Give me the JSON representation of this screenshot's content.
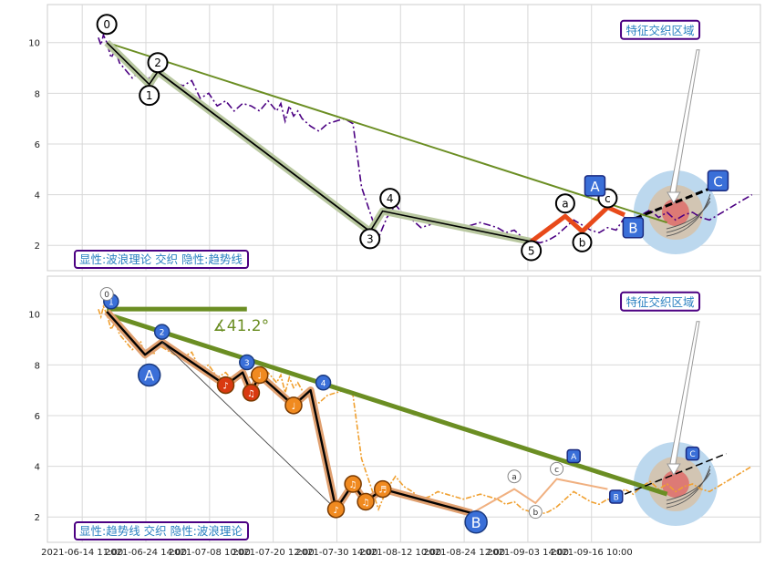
{
  "colors": {
    "price_top": "#4b0082",
    "price_bottom": "#f0a030",
    "wave": "#000000",
    "wave_halo_top": "#b9c8a0",
    "wave_halo_bottom": "#e0a070",
    "trend": "#6b8e23",
    "abc_red": "#e84a1a",
    "label_box_border": "#4b0082",
    "label_box_text": "#2a80c0",
    "badge_blue": "#3a6fd8",
    "badge_orange": "#f08a20",
    "badge_red": "#d93a10"
  },
  "chart_data": [
    {
      "type": "line",
      "panel": "top",
      "ylim": [
        1.0,
        11.5
      ],
      "yticks": [
        2,
        4,
        6,
        8,
        10
      ],
      "grid": true,
      "price_series": {
        "x": [
          0,
          0.3,
          0.6,
          1,
          1.5,
          2,
          2.5,
          3,
          4,
          5,
          5.5,
          6,
          6.5,
          7,
          8,
          9,
          10,
          11,
          12,
          13,
          14,
          15,
          16,
          17,
          18,
          19,
          20,
          21,
          21.5,
          22,
          22.5,
          23,
          23.5,
          24,
          25,
          26,
          27,
          28,
          29,
          30,
          31,
          32,
          33,
          34,
          35,
          36,
          37,
          38,
          39,
          40,
          41,
          42,
          43,
          44,
          45,
          46,
          47,
          48,
          49,
          50,
          51,
          52,
          53,
          54,
          55,
          56,
          57,
          58,
          59,
          60,
          61,
          62,
          63,
          64,
          65,
          66,
          67,
          68,
          69,
          70,
          71,
          72,
          73,
          74,
          75,
          76,
          77
        ],
        "y": [
          10.2,
          9.9,
          10.3,
          10.0,
          9.4,
          9.7,
          9.2,
          9.0,
          8.6,
          8.9,
          8.3,
          8.6,
          8.4,
          8.8,
          8.6,
          8.4,
          8.3,
          8.5,
          7.8,
          8.0,
          7.5,
          7.7,
          7.3,
          7.6,
          7.5,
          7.3,
          7.7,
          7.3,
          7.6,
          6.9,
          7.5,
          7.1,
          7.3,
          7.0,
          6.7,
          6.5,
          6.8,
          6.9,
          7.0,
          6.8,
          4.3,
          3.3,
          2.3,
          3.1,
          3.6,
          3.2,
          3.0,
          2.7,
          2.8,
          3.0,
          2.9,
          2.8,
          2.7,
          2.8,
          2.9,
          2.8,
          2.7,
          2.5,
          2.6,
          2.3,
          2.2,
          2.1,
          2.2,
          2.4,
          2.7,
          3.0,
          2.8,
          2.6,
          2.5,
          2.7,
          2.6,
          3.1,
          2.9,
          3.2,
          3.4,
          3.1,
          3.3,
          3.0,
          3.2,
          3.3,
          3.1,
          3.0,
          3.2,
          3.4,
          3.6,
          3.8,
          4.0
        ]
      },
      "wave_points": [
        {
          "label": "0",
          "x": 1,
          "y": 10.0
        },
        {
          "label": "1",
          "x": 6,
          "y": 8.35
        },
        {
          "label": "2",
          "x": 7,
          "y": 8.85
        },
        {
          "label": "3",
          "x": 32,
          "y": 2.55
        },
        {
          "label": "4",
          "x": 33.5,
          "y": 3.35
        },
        {
          "label": "5",
          "x": 51,
          "y": 2.15
        }
      ],
      "abc_points": [
        {
          "label": "a",
          "x": 55,
          "y": 3.15
        },
        {
          "label": "b",
          "x": 57,
          "y": 2.55
        },
        {
          "label": "c",
          "x": 60,
          "y": 3.5
        }
      ],
      "trend_line": {
        "x": [
          1,
          67
        ],
        "y": [
          10.0,
          2.9
        ]
      },
      "projection": {
        "x": [
          62,
          74
        ],
        "y": [
          2.9,
          4.5
        ]
      },
      "badges": [
        {
          "label": "A",
          "x": 58.5,
          "y": 4.35
        },
        {
          "label": "B",
          "x": 63,
          "y": 2.7
        },
        {
          "label": "C",
          "x": 73,
          "y": 4.55
        }
      ],
      "target_zone": {
        "x": 68,
        "y": 3.3,
        "label": "特征交织区域",
        "label_at": {
          "x": 62,
          "y": 10.5
        }
      },
      "caption": "显性:波浪理论 交织 隐性:趋势线"
    },
    {
      "type": "line",
      "panel": "bottom",
      "ylim": [
        1.0,
        11.5
      ],
      "yticks": [
        2,
        4,
        6,
        8,
        10
      ],
      "grid": true,
      "price_series": {
        "x": [
          0,
          0.3,
          0.6,
          1,
          1.5,
          2,
          2.5,
          3,
          4,
          5,
          5.5,
          6,
          6.5,
          7,
          8,
          9,
          10,
          11,
          12,
          13,
          14,
          15,
          16,
          17,
          18,
          19,
          20,
          21,
          21.5,
          22,
          22.5,
          23,
          23.5,
          24,
          25,
          26,
          27,
          28,
          29,
          30,
          31,
          32,
          33,
          34,
          35,
          36,
          37,
          38,
          39,
          40,
          41,
          42,
          43,
          44,
          45,
          46,
          47,
          48,
          49,
          50,
          51,
          52,
          53,
          54,
          55,
          56,
          57,
          58,
          59,
          60,
          61,
          62,
          63,
          64,
          65,
          66,
          67,
          68,
          69,
          70,
          71,
          72,
          73,
          74,
          75,
          76,
          77
        ],
        "y": [
          10.2,
          9.9,
          10.3,
          10.0,
          9.4,
          9.7,
          9.2,
          9.0,
          8.6,
          8.9,
          8.3,
          8.6,
          8.4,
          8.8,
          8.6,
          8.4,
          8.3,
          8.5,
          7.8,
          8.0,
          7.5,
          7.7,
          7.3,
          7.6,
          7.5,
          7.3,
          7.7,
          7.3,
          7.6,
          6.9,
          7.5,
          7.1,
          7.3,
          7.0,
          6.7,
          6.5,
          6.8,
          6.9,
          7.0,
          6.8,
          4.3,
          3.3,
          2.3,
          3.1,
          3.6,
          3.2,
          3.0,
          2.7,
          2.8,
          3.0,
          2.9,
          2.8,
          2.7,
          2.8,
          2.9,
          2.8,
          2.7,
          2.5,
          2.6,
          2.3,
          2.2,
          2.1,
          2.2,
          2.4,
          2.7,
          3.0,
          2.8,
          2.6,
          2.5,
          2.7,
          2.6,
          3.1,
          2.9,
          3.2,
          3.4,
          3.1,
          3.3,
          3.0,
          3.2,
          3.3,
          3.1,
          3.0,
          3.2,
          3.4,
          3.6,
          3.8,
          4.0
        ]
      },
      "wave_points": [
        {
          "label": "0",
          "x": 1,
          "y": 10.1
        },
        {
          "label": "A",
          "x": 5.5,
          "y": 8.4
        },
        {
          "label": "2",
          "x": 7.5,
          "y": 8.9
        },
        {
          "label": "♪",
          "x": 15,
          "y": 7.2
        },
        {
          "label": "3",
          "x": 17,
          "y": 7.7
        },
        {
          "label": "♫",
          "x": 18,
          "y": 6.9
        },
        {
          "label": "♩",
          "x": 19,
          "y": 7.6
        },
        {
          "label": "♩",
          "x": 23,
          "y": 6.4
        },
        {
          "label": "4",
          "x": 25,
          "y": 7.0
        },
        {
          "label": "♪",
          "x": 28,
          "y": 2.3
        },
        {
          "label": "♫",
          "x": 30,
          "y": 3.3
        },
        {
          "label": "♫",
          "x": 31.5,
          "y": 2.6
        },
        {
          "label": "♬",
          "x": 33.5,
          "y": 3.1
        },
        {
          "label": "B",
          "x": 44,
          "y": 2.15
        }
      ],
      "badges_blue": [
        {
          "label": "1",
          "x": 1.5,
          "y": 10.5
        },
        {
          "label": "2",
          "x": 7.5,
          "y": 9.3
        },
        {
          "label": "3",
          "x": 17.5,
          "y": 8.1
        },
        {
          "label": "4",
          "x": 26.5,
          "y": 7.3
        },
        {
          "label": "A",
          "x": 6,
          "y": 7.6
        },
        {
          "label": "B",
          "x": 44.5,
          "y": 1.8
        }
      ],
      "hollow_labels": [
        {
          "label": "0",
          "x": 1,
          "y": 10.8
        },
        {
          "label": "a",
          "x": 49,
          "y": 3.6
        },
        {
          "label": "b",
          "x": 51.5,
          "y": 2.2
        },
        {
          "label": "c",
          "x": 54,
          "y": 3.9
        }
      ],
      "trend_line": {
        "x": [
          1,
          67
        ],
        "y": [
          10.0,
          2.9
        ]
      },
      "horizontal_line": {
        "x": [
          1,
          17.5
        ],
        "y": [
          10.2,
          10.2
        ]
      },
      "angle_label": "∡41.2°",
      "projection": {
        "x": [
          62,
          74
        ],
        "y": [
          2.9,
          4.5
        ]
      },
      "badges": [
        {
          "label": "A",
          "x": 56,
          "y": 4.4
        },
        {
          "label": "B",
          "x": 61,
          "y": 2.8
        },
        {
          "label": "C",
          "x": 70,
          "y": 4.5
        }
      ],
      "target_zone": {
        "x": 68,
        "y": 3.3,
        "label": "特征交织区域",
        "label_at": {
          "x": 62,
          "y": 10.5
        }
      },
      "caption": "显性:趋势线 交织 隐性:波浪理论"
    }
  ],
  "x_axis": {
    "tick_labels": [
      "2021-06-14 11:00",
      "2021-06-24 14:00",
      "2021-07-08 10:00",
      "2021-07-20 12:00",
      "2021-07-30 14:00",
      "2021-08-12 10:00",
      "2021-08-24 12:00",
      "2021-09-03 14:00",
      "2021-09-16 10:00"
    ],
    "tick_positions": [
      -3.5,
      4,
      11.5,
      19,
      26.5,
      34,
      41.5,
      49,
      56.5
    ]
  }
}
